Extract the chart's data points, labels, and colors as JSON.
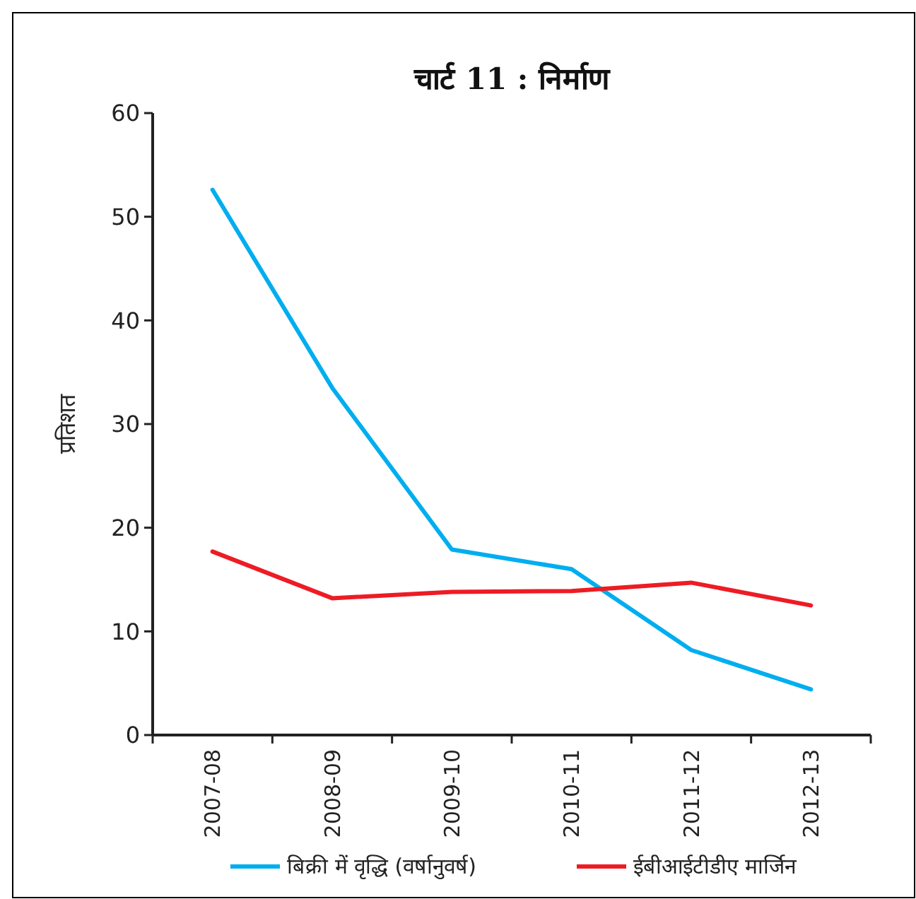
{
  "chart_data": {
    "type": "line",
    "title": "चार्ट 11 : निर्माण",
    "ylabel": "प्रतिशत",
    "categories": [
      "2007-08",
      "2008-09",
      "2009-10",
      "2010-11",
      "2011-12",
      "2012-13"
    ],
    "series": [
      {
        "name": "बिक्री में वृद्धि (वर्षानुवर्ष)",
        "color": "#00aeef",
        "values": [
          52.6,
          33.5,
          17.9,
          16.0,
          8.2,
          4.4
        ]
      },
      {
        "name": "ईबीआईटीडीए मार्जिन",
        "color": "#ed1c24",
        "values": [
          17.7,
          13.2,
          13.8,
          13.9,
          14.7,
          12.5
        ]
      }
    ],
    "ylim": [
      0,
      60
    ],
    "yticks": [
      0,
      10,
      20,
      30,
      40,
      50,
      60
    ],
    "grid": false,
    "legend": "bottom",
    "marker": "none",
    "line_style": "solid"
  }
}
